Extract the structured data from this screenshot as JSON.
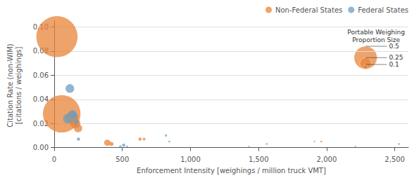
{
  "chart_data": {
    "type": "scatter",
    "title": "",
    "xlabel": "Enforcement Intensity [weighings / million truck VMT]",
    "ylabel": "Citation Rate (non-WIM)\n[citations / weighings]",
    "xlim": [
      0,
      2600
    ],
    "ylim": [
      -0.002,
      0.105
    ],
    "xticks": [
      0,
      500,
      {
        "value": 1000,
        "label": "1,000"
      },
      {
        "value": 1500,
        "label": "1,500"
      },
      {
        "value": 2000,
        "label": "2,000"
      },
      {
        "value": 2500,
        "label": "2,500"
      }
    ],
    "yticks": [
      {
        "value": 0.0,
        "label": "0.00"
      },
      0.02,
      0.04,
      0.06,
      0.08,
      {
        "value": 0.1,
        "label": "0.10"
      }
    ],
    "grid": "y",
    "legend": "upper right",
    "series": [
      {
        "name": "Non-Federal States",
        "color": "#E8843A",
        "x": [
          20,
          55,
          130,
          155,
          175,
          390,
          420,
          630,
          660,
          1430,
          1560,
          1960,
          2210
        ],
        "values": [
          0.092,
          0.028,
          0.025,
          0.02,
          0.016,
          0.004,
          0.003,
          0.007,
          0.007,
          0.001,
          0.003,
          0.005,
          0.001
        ],
        "sizes": [
          0.9,
          0.82,
          0.28,
          0.22,
          0.18,
          0.14,
          0.09,
          0.07,
          0.06,
          0.03,
          0.04,
          0.04,
          0.03
        ]
      },
      {
        "name": "Federal States",
        "color": "#6B9DC2",
        "x": [
          115,
          100,
          135,
          148,
          162,
          178,
          485,
          510,
          535,
          820,
          845,
          1910,
          2530
        ],
        "values": [
          0.049,
          0.024,
          0.028,
          0.026,
          0.021,
          0.007,
          0.001,
          0.002,
          0.001,
          0.01,
          0.005,
          0.005,
          0.003
        ],
        "sizes": [
          0.19,
          0.21,
          0.17,
          0.14,
          0.11,
          0.07,
          0.05,
          0.07,
          0.04,
          0.05,
          0.04,
          0.03,
          0.04
        ]
      }
    ],
    "size_legend": {
      "title": "Portable Weighing\nProportion Size",
      "sizes": [
        0.5,
        0.25,
        0.1
      ]
    }
  }
}
